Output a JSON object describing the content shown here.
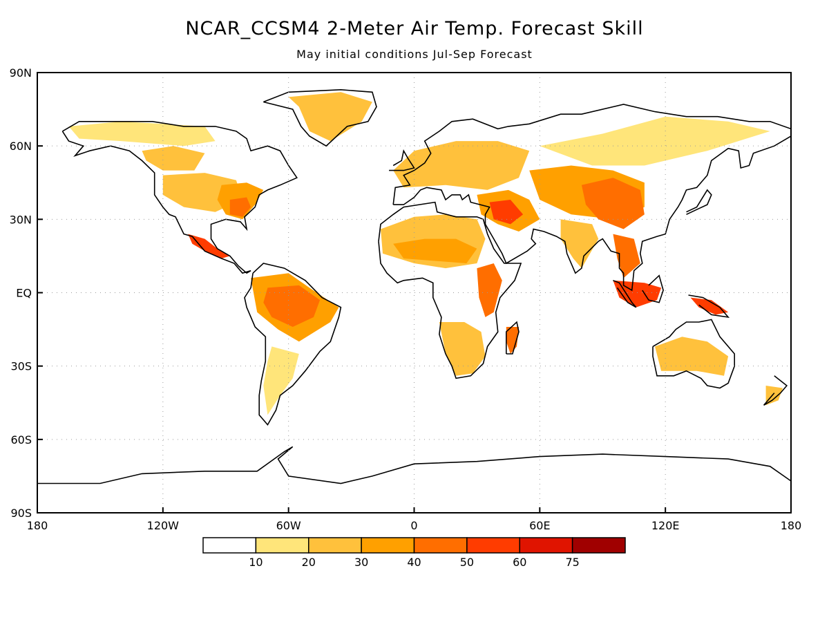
{
  "title": "NCAR_CCSM4 2-Meter Air Temp. Forecast Skill",
  "subtitle": "May initial conditions   Jul-Sep Forecast",
  "map": {
    "projection": "equirectangular",
    "lon_range": [
      -180,
      180
    ],
    "lat_range": [
      -90,
      90
    ],
    "gridlines": "dotted",
    "lat_labels": [
      {
        "lat": 90,
        "text": "90N"
      },
      {
        "lat": 60,
        "text": "60N"
      },
      {
        "lat": 30,
        "text": "30N"
      },
      {
        "lat": 0,
        "text": "EQ"
      },
      {
        "lat": -30,
        "text": "30S"
      },
      {
        "lat": -60,
        "text": "60S"
      },
      {
        "lat": -90,
        "text": "90S"
      }
    ],
    "lon_labels": [
      {
        "lon": -180,
        "text": "180"
      },
      {
        "lon": -120,
        "text": "120W"
      },
      {
        "lon": -60,
        "text": "60W"
      },
      {
        "lon": 0,
        "text": "0"
      },
      {
        "lon": 60,
        "text": "60E"
      },
      {
        "lon": 120,
        "text": "120E"
      },
      {
        "lon": 180,
        "text": "180"
      }
    ]
  },
  "colorbar": {
    "bins": [
      {
        "color": "#ffffff"
      },
      {
        "color": "#ffe57a"
      },
      {
        "color": "#ffc13c"
      },
      {
        "color": "#ffa000"
      },
      {
        "color": "#ff6e00"
      },
      {
        "color": "#ff3c00"
      },
      {
        "color": "#e01400"
      },
      {
        "color": "#a00000"
      }
    ],
    "labels": [
      "10",
      "20",
      "30",
      "40",
      "50",
      "60",
      "75"
    ]
  },
  "regions": [
    {
      "name": "Alaska-Canada north",
      "level": 1,
      "pts": [
        [
          -165,
          68
        ],
        [
          -140,
          70
        ],
        [
          -120,
          69
        ],
        [
          -100,
          68
        ],
        [
          -95,
          62
        ],
        [
          -110,
          60
        ],
        [
          -140,
          62
        ],
        [
          -160,
          63
        ]
      ]
    },
    {
      "name": "Greenland",
      "level": 2,
      "pts": [
        [
          -60,
          80
        ],
        [
          -35,
          82
        ],
        [
          -20,
          78
        ],
        [
          -25,
          70
        ],
        [
          -40,
          62
        ],
        [
          -50,
          66
        ],
        [
          -55,
          76
        ]
      ]
    },
    {
      "name": "Western Canada",
      "level": 2,
      "pts": [
        [
          -130,
          58
        ],
        [
          -115,
          60
        ],
        [
          -100,
          57
        ],
        [
          -105,
          50
        ],
        [
          -120,
          50
        ],
        [
          -128,
          54
        ]
      ]
    },
    {
      "name": "US Plains",
      "level": 2,
      "pts": [
        [
          -120,
          48
        ],
        [
          -100,
          49
        ],
        [
          -85,
          46
        ],
        [
          -82,
          38
        ],
        [
          -95,
          33
        ],
        [
          -110,
          35
        ],
        [
          -120,
          40
        ]
      ]
    },
    {
      "name": "Eastern US",
      "level": 3,
      "pts": [
        [
          -92,
          44
        ],
        [
          -80,
          45
        ],
        [
          -72,
          42
        ],
        [
          -76,
          36
        ],
        [
          -82,
          30
        ],
        [
          -90,
          32
        ],
        [
          -94,
          38
        ]
      ]
    },
    {
      "name": "Southeast US",
      "level": 4,
      "pts": [
        [
          -88,
          38
        ],
        [
          -80,
          39
        ],
        [
          -78,
          35
        ],
        [
          -82,
          31
        ],
        [
          -88,
          32
        ]
      ]
    },
    {
      "name": "Mexico",
      "level": 5,
      "pts": [
        [
          -108,
          24
        ],
        [
          -100,
          22
        ],
        [
          -94,
          18
        ],
        [
          -88,
          15
        ],
        [
          -92,
          14
        ],
        [
          -100,
          17
        ],
        [
          -106,
          20
        ]
      ]
    },
    {
      "name": "Amazon",
      "level": 3,
      "pts": [
        [
          -78,
          6
        ],
        [
          -60,
          8
        ],
        [
          -50,
          2
        ],
        [
          -36,
          -6
        ],
        [
          -40,
          -12
        ],
        [
          -55,
          -20
        ],
        [
          -65,
          -15
        ],
        [
          -75,
          -8
        ]
      ]
    },
    {
      "name": "Amazon core",
      "level": 4,
      "pts": [
        [
          -70,
          2
        ],
        [
          -55,
          3
        ],
        [
          -45,
          -3
        ],
        [
          -48,
          -10
        ],
        [
          -58,
          -14
        ],
        [
          -68,
          -10
        ],
        [
          -72,
          -4
        ]
      ]
    },
    {
      "name": "Southern South America",
      "level": 1,
      "pts": [
        [
          -68,
          -22
        ],
        [
          -55,
          -25
        ],
        [
          -58,
          -35
        ],
        [
          -64,
          -42
        ],
        [
          -70,
          -50
        ],
        [
          -72,
          -38
        ],
        [
          -70,
          -28
        ]
      ]
    },
    {
      "name": "Sahara",
      "level": 2,
      "pts": [
        [
          -16,
          26
        ],
        [
          0,
          31
        ],
        [
          15,
          32
        ],
        [
          30,
          30
        ],
        [
          34,
          22
        ],
        [
          30,
          12
        ],
        [
          15,
          10
        ],
        [
          0,
          12
        ],
        [
          -15,
          16
        ]
      ]
    },
    {
      "name": "Sahel",
      "level": 3,
      "pts": [
        [
          -10,
          20
        ],
        [
          5,
          22
        ],
        [
          20,
          22
        ],
        [
          30,
          18
        ],
        [
          25,
          12
        ],
        [
          10,
          13
        ],
        [
          -5,
          14
        ]
      ]
    },
    {
      "name": "East Africa",
      "level": 4,
      "pts": [
        [
          30,
          10
        ],
        [
          38,
          12
        ],
        [
          42,
          5
        ],
        [
          38,
          -8
        ],
        [
          34,
          -10
        ],
        [
          31,
          -2
        ]
      ]
    },
    {
      "name": "Southern Africa",
      "level": 2,
      "pts": [
        [
          12,
          -12
        ],
        [
          24,
          -12
        ],
        [
          32,
          -16
        ],
        [
          34,
          -26
        ],
        [
          28,
          -33
        ],
        [
          20,
          -34
        ],
        [
          15,
          -25
        ]
      ]
    },
    {
      "name": "Madagascar",
      "level": 4,
      "pts": [
        [
          44,
          -14
        ],
        [
          50,
          -14
        ],
        [
          49,
          -22
        ],
        [
          46,
          -25
        ],
        [
          44,
          -20
        ]
      ]
    },
    {
      "name": "Europe",
      "level": 2,
      "pts": [
        [
          -10,
          50
        ],
        [
          0,
          58
        ],
        [
          20,
          62
        ],
        [
          40,
          62
        ],
        [
          55,
          58
        ],
        [
          50,
          47
        ],
        [
          35,
          42
        ],
        [
          15,
          44
        ],
        [
          -5,
          43
        ]
      ]
    },
    {
      "name": "Middle East",
      "level": 3,
      "pts": [
        [
          30,
          40
        ],
        [
          45,
          42
        ],
        [
          55,
          38
        ],
        [
          60,
          30
        ],
        [
          50,
          25
        ],
        [
          40,
          28
        ],
        [
          32,
          32
        ]
      ]
    },
    {
      "name": "Middle East core",
      "level": 5,
      "pts": [
        [
          36,
          37
        ],
        [
          46,
          38
        ],
        [
          52,
          32
        ],
        [
          46,
          28
        ],
        [
          38,
          30
        ]
      ]
    },
    {
      "name": "Siberia",
      "level": 1,
      "pts": [
        [
          60,
          60
        ],
        [
          90,
          65
        ],
        [
          120,
          72
        ],
        [
          150,
          70
        ],
        [
          170,
          66
        ],
        [
          140,
          58
        ],
        [
          110,
          52
        ],
        [
          85,
          52
        ]
      ]
    },
    {
      "name": "Central Asia",
      "level": 3,
      "pts": [
        [
          55,
          50
        ],
        [
          75,
          52
        ],
        [
          95,
          50
        ],
        [
          110,
          45
        ],
        [
          110,
          35
        ],
        [
          95,
          30
        ],
        [
          75,
          32
        ],
        [
          60,
          38
        ]
      ]
    },
    {
      "name": "Tibet-China",
      "level": 4,
      "pts": [
        [
          80,
          44
        ],
        [
          95,
          47
        ],
        [
          108,
          42
        ],
        [
          110,
          32
        ],
        [
          100,
          26
        ],
        [
          88,
          30
        ],
        [
          82,
          36
        ]
      ]
    },
    {
      "name": "India",
      "level": 2,
      "pts": [
        [
          70,
          30
        ],
        [
          85,
          28
        ],
        [
          88,
          22
        ],
        [
          80,
          10
        ],
        [
          76,
          14
        ],
        [
          70,
          22
        ]
      ]
    },
    {
      "name": "Indochina",
      "level": 4,
      "pts": [
        [
          95,
          24
        ],
        [
          105,
          22
        ],
        [
          108,
          12
        ],
        [
          100,
          6
        ],
        [
          97,
          14
        ]
      ]
    },
    {
      "name": "Borneo-Sumatra",
      "level": 5,
      "pts": [
        [
          95,
          5
        ],
        [
          110,
          4
        ],
        [
          118,
          2
        ],
        [
          116,
          -3
        ],
        [
          106,
          -6
        ],
        [
          98,
          -2
        ]
      ]
    },
    {
      "name": "New Guinea",
      "level": 5,
      "pts": [
        [
          132,
          -2
        ],
        [
          142,
          -3
        ],
        [
          150,
          -8
        ],
        [
          144,
          -9
        ],
        [
          136,
          -6
        ]
      ]
    },
    {
      "name": "Australia",
      "level": 2,
      "pts": [
        [
          115,
          -22
        ],
        [
          128,
          -18
        ],
        [
          140,
          -20
        ],
        [
          150,
          -26
        ],
        [
          148,
          -34
        ],
        [
          135,
          -32
        ],
        [
          118,
          -32
        ]
      ]
    },
    {
      "name": "New Zealand",
      "level": 2,
      "pts": [
        [
          168,
          -38
        ],
        [
          176,
          -39
        ],
        [
          174,
          -44
        ],
        [
          168,
          -46
        ]
      ]
    }
  ]
}
